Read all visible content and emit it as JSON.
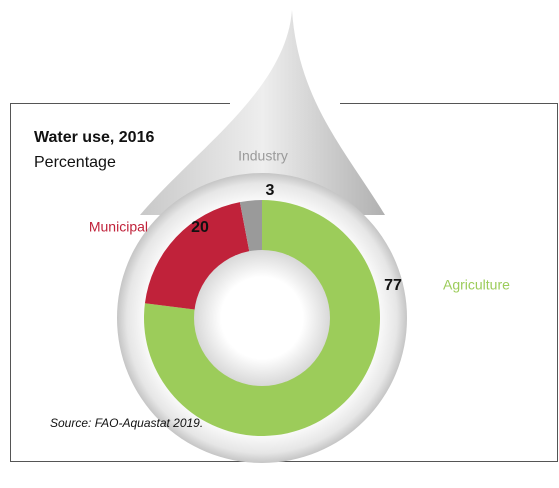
{
  "chart_data": {
    "type": "donut",
    "title": "Water use, 2016",
    "subtitle": "Percentage",
    "categories": [
      "Agriculture",
      "Municipal",
      "Industry"
    ],
    "values": [
      77,
      20,
      3
    ],
    "colors": [
      "#9ccc5a",
      "#c0223a",
      "#9a9a9a"
    ],
    "source": "Source: FAO-Aquastat 2019."
  }
}
